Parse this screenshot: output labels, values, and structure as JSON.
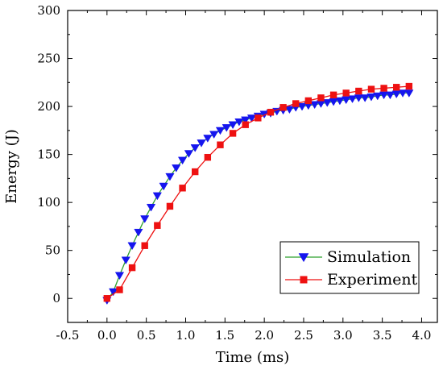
{
  "chart_data": {
    "type": "line",
    "xlabel": "Time (ms)",
    "ylabel": "Energy (J)",
    "xlim": [
      -0.5,
      4.2
    ],
    "ylim": [
      -25,
      300
    ],
    "xticks": [
      "-0.5",
      "0.0",
      "0.5",
      "1.0",
      "1.5",
      "2.0",
      "2.5",
      "3.0",
      "3.5",
      "4.0"
    ],
    "yticks": [
      "0",
      "50",
      "100",
      "150",
      "200",
      "250",
      "300"
    ],
    "grid": false,
    "legend_position": "bottom-right",
    "series": [
      {
        "name": "Simulation",
        "color": "#2ca02c",
        "marker_color": "#1515ee",
        "marker": "triangle-down",
        "x": [
          0.0,
          0.08,
          0.16,
          0.24,
          0.32,
          0.4,
          0.48,
          0.56,
          0.64,
          0.72,
          0.8,
          0.88,
          0.96,
          1.04,
          1.12,
          1.2,
          1.28,
          1.36,
          1.44,
          1.52,
          1.6,
          1.68,
          1.76,
          1.84,
          1.92,
          2.0,
          2.08,
          2.16,
          2.24,
          2.32,
          2.4,
          2.48,
          2.56,
          2.64,
          2.72,
          2.8,
          2.88,
          2.96,
          3.04,
          3.12,
          3.2,
          3.28,
          3.36,
          3.44,
          3.52,
          3.6,
          3.68,
          3.76,
          3.84
        ],
        "y": [
          -2,
          7,
          24,
          40,
          55,
          69,
          83,
          95,
          107,
          117,
          127,
          136,
          144,
          151,
          157,
          162,
          167,
          171,
          175,
          178,
          181,
          184,
          186,
          188,
          190,
          192,
          193,
          195,
          196,
          197,
          199,
          200,
          201,
          202,
          203,
          204,
          205,
          206,
          207,
          208,
          209,
          209,
          210,
          211,
          212,
          212,
          213,
          214,
          214
        ]
      },
      {
        "name": "Experiment",
        "color": "#ee1111",
        "marker_color": "#ee1111",
        "marker": "square",
        "x": [
          0.0,
          0.16,
          0.32,
          0.48,
          0.64,
          0.8,
          0.96,
          1.12,
          1.28,
          1.44,
          1.6,
          1.76,
          1.92,
          2.08,
          2.24,
          2.4,
          2.56,
          2.72,
          2.88,
          3.04,
          3.2,
          3.36,
          3.52,
          3.68,
          3.84
        ],
        "y": [
          0,
          9,
          32,
          55,
          76,
          96,
          115,
          132,
          147,
          160,
          172,
          181,
          188,
          194,
          199,
          203,
          206,
          209,
          212,
          214,
          216,
          218,
          219,
          220,
          221
        ]
      }
    ]
  }
}
